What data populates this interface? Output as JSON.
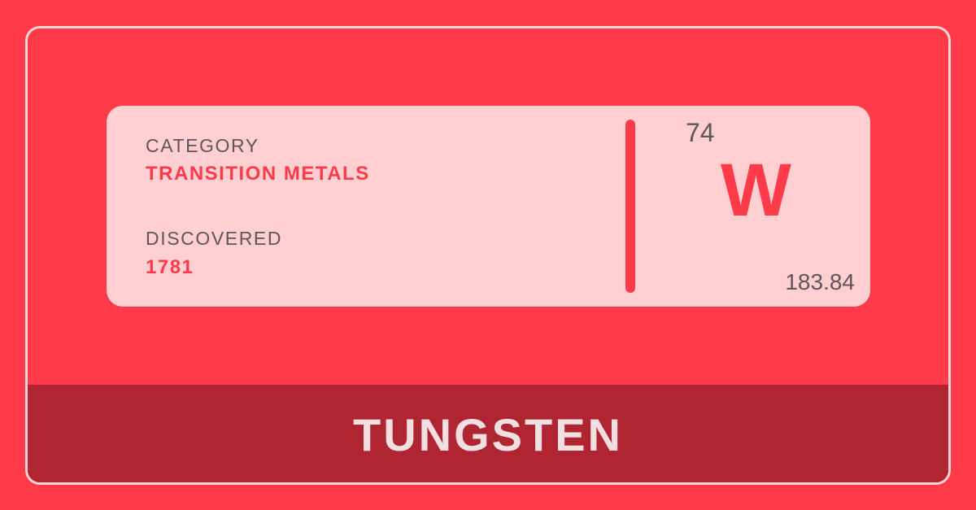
{
  "card": {
    "category_label": "CATEGORY",
    "category_value": "TRANSITION METALS",
    "discovered_label": "DISCOVERED",
    "discovered_value": "1781",
    "atomic_number": "74",
    "symbol": "W",
    "atomic_mass": "183.84"
  },
  "element": {
    "name": "TUNGSTEN"
  },
  "colors": {
    "background": "#ff3a49",
    "card": "#ffcfd2",
    "band": "#b02532",
    "text_dark": "#5f555a",
    "name_text": "#f1dfe1"
  }
}
